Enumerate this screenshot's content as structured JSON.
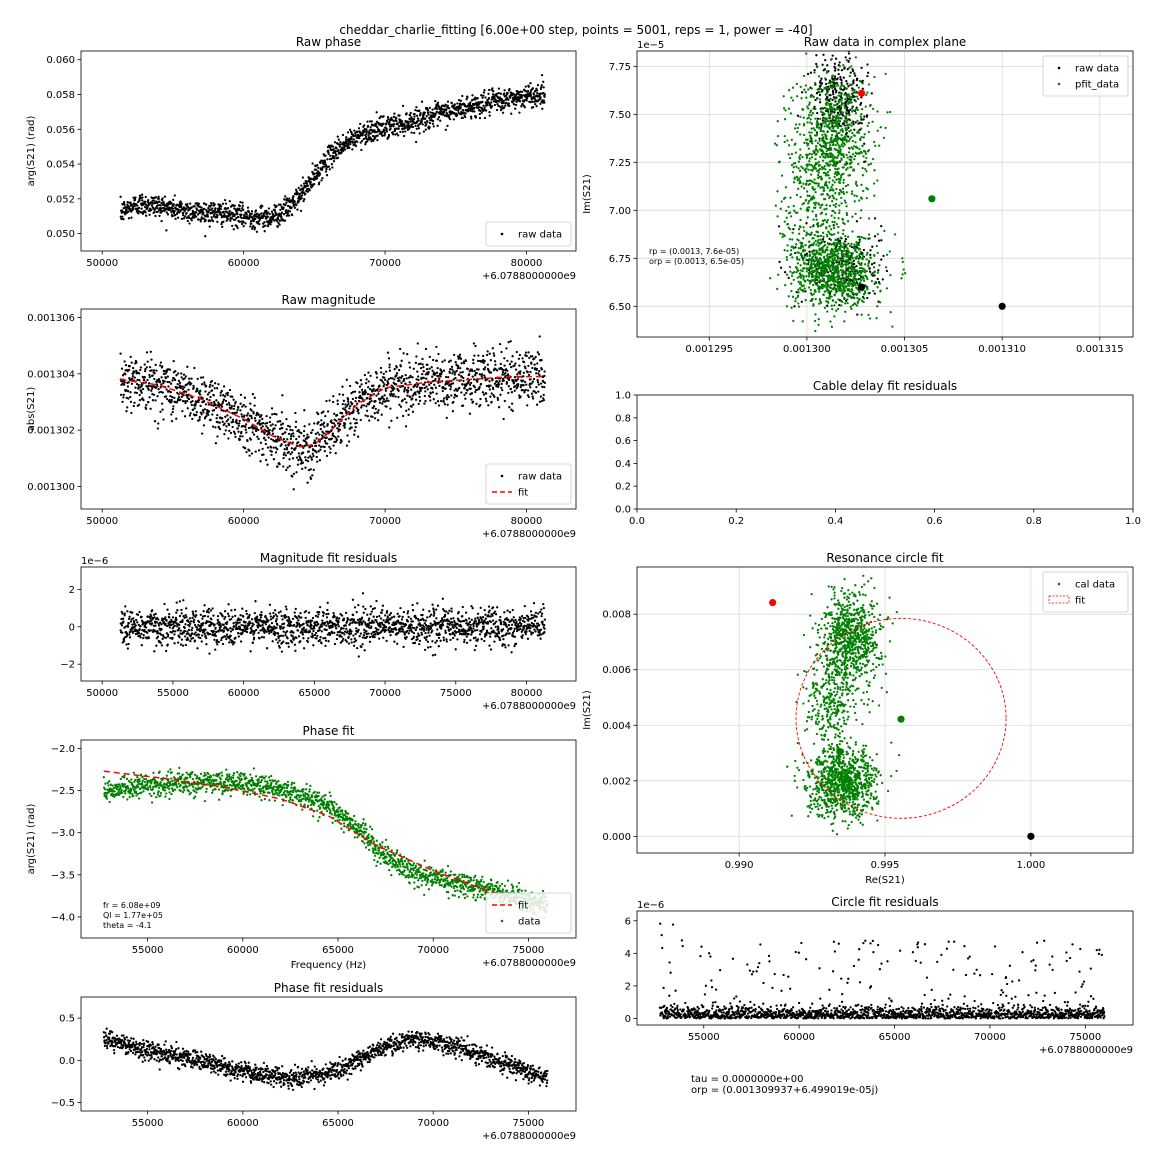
{
  "figure": {
    "suptitle": "cheddar_charlie_fitting [6.00e+00 step, points = 5001, reps = 1, power = -40]",
    "footer_lines": [
      "tau = 0.0000000e+00",
      "orp = (0.001309937+6.499019e-05j)"
    ]
  },
  "chart_data": [
    {
      "id": "raw_phase",
      "type": "scatter",
      "title": "Raw phase",
      "xlabel": "",
      "ylabel": "arg(S21) (rad)",
      "xlim": [
        48500,
        83500
      ],
      "ylim": [
        0.049,
        0.0605
      ],
      "xticks": [
        50000,
        60000,
        70000,
        80000
      ],
      "xtick_labels": [
        "50000",
        "60000",
        "70000",
        "80000"
      ],
      "yticks": [
        0.05,
        0.052,
        0.054,
        0.056,
        0.058,
        0.06
      ],
      "ytick_labels": [
        "0.050",
        "0.052",
        "0.054",
        "0.056",
        "0.058",
        "0.060"
      ],
      "x_offset_label": "+6.0788000000e9",
      "grid": false,
      "legend_loc": "lower-right",
      "series": [
        {
          "name": "raw data",
          "kind": "points",
          "color": "#000000",
          "x": [
            51300,
            52500,
            54000,
            56000,
            58000,
            60000,
            61500,
            62500,
            63500,
            64500,
            65500,
            66500,
            67500,
            68500,
            70000,
            72000,
            74000,
            76000,
            78000,
            80000,
            81300
          ],
          "y": [
            0.0512,
            0.0517,
            0.0516,
            0.0513,
            0.0512,
            0.051,
            0.0509,
            0.0511,
            0.0517,
            0.0527,
            0.0538,
            0.0548,
            0.0553,
            0.0558,
            0.0561,
            0.0565,
            0.0569,
            0.0573,
            0.0576,
            0.0579,
            0.058
          ],
          "spread": 0.0006,
          "density": 1800
        }
      ]
    },
    {
      "id": "raw_magnitude",
      "type": "scatter",
      "title": "Raw magnitude",
      "xlabel": "",
      "ylabel": "abs(S21)",
      "xlim": [
        48500,
        83500
      ],
      "ylim": [
        0.0012992,
        0.0013063
      ],
      "xticks": [
        50000,
        60000,
        70000,
        80000
      ],
      "xtick_labels": [
        "50000",
        "60000",
        "70000",
        "80000"
      ],
      "yticks": [
        0.0013,
        0.001302,
        0.001304,
        0.001306
      ],
      "ytick_labels": [
        "0.001300",
        "0.001302",
        "0.001304",
        "0.001306"
      ],
      "x_offset_label": "+6.0788000000e9",
      "grid": false,
      "legend_loc": "lower-right",
      "series": [
        {
          "name": "raw data",
          "kind": "points",
          "color": "#000000",
          "x": [
            51300,
            54000,
            57000,
            60000,
            62000,
            64000,
            65000,
            66000,
            68000,
            70000,
            73000,
            76000,
            79000,
            81300
          ],
          "y": [
            0.0013038,
            0.0013036,
            0.0013031,
            0.0013024,
            0.0013018,
            0.0013014,
            0.0013015,
            0.0013019,
            0.0013029,
            0.0013035,
            0.0013037,
            0.0013038,
            0.0013039,
            0.0013039
          ],
          "spread": 9e-07,
          "density": 1800
        },
        {
          "name": "fit",
          "kind": "line",
          "color": "#ff0000",
          "dash": "6,4",
          "x": [
            51300,
            54000,
            57000,
            60000,
            62000,
            64000,
            65000,
            66000,
            68000,
            70000,
            73000,
            76000,
            79000,
            81300
          ],
          "y": [
            0.0013038,
            0.0013036,
            0.0013031,
            0.0013024,
            0.0013018,
            0.0013014,
            0.0013015,
            0.0013019,
            0.0013029,
            0.0013035,
            0.0013037,
            0.0013038,
            0.0013039,
            0.0013039
          ]
        }
      ]
    },
    {
      "id": "mag_residuals",
      "type": "scatter",
      "title": "Magnitude fit residuals",
      "xlabel": "",
      "ylabel": "",
      "xlim": [
        48500,
        83500
      ],
      "ylim": [
        -2.9e-06,
        3.2e-06
      ],
      "xticks": [
        50000,
        55000,
        60000,
        65000,
        70000,
        75000,
        80000
      ],
      "xtick_labels": [
        "50000",
        "55000",
        "60000",
        "65000",
        "70000",
        "75000",
        "80000"
      ],
      "yticks": [
        -2e-06,
        0,
        2e-06
      ],
      "ytick_labels": [
        "−2",
        "0",
        "2"
      ],
      "y_scale_label": "1e−6",
      "x_offset_label": "+6.0788000000e9",
      "grid": false,
      "legend_loc": "",
      "series": [
        {
          "name": "",
          "kind": "points",
          "color": "#000000",
          "x": [
            51300,
            81300
          ],
          "y": [
            0,
            0
          ],
          "spread": 9e-07,
          "density": 1800
        }
      ]
    },
    {
      "id": "phase_fit",
      "type": "scatter",
      "title": "Phase fit",
      "xlabel": "Frequency (Hz)",
      "ylabel": "arg(S21) (rad)",
      "xlim": [
        51500,
        77500
      ],
      "ylim": [
        -4.25,
        -1.9
      ],
      "xticks": [
        55000,
        60000,
        65000,
        70000,
        75000
      ],
      "xtick_labels": [
        "55000",
        "60000",
        "65000",
        "70000",
        "75000"
      ],
      "yticks": [
        -4.0,
        -3.5,
        -3.0,
        -2.5,
        -2.0
      ],
      "ytick_labels": [
        "−4.0",
        "−3.5",
        "−3.0",
        "−2.5",
        "−2.0"
      ],
      "x_offset_label": "+6.0788000000e9",
      "grid": false,
      "legend_loc": "lower-right",
      "annotation": [
        "fr = 6.08e+09",
        "Ql = 1.77e+05",
        "theta = -4.1"
      ],
      "series": [
        {
          "name": "data",
          "kind": "points",
          "color": "#008000",
          "x": [
            52700,
            55000,
            58000,
            61000,
            63000,
            64500,
            66000,
            67500,
            69000,
            71000,
            73000,
            75000,
            76000
          ],
          "y": [
            -2.5,
            -2.44,
            -2.4,
            -2.44,
            -2.55,
            -2.68,
            -2.95,
            -3.28,
            -3.48,
            -3.58,
            -3.68,
            -3.8,
            -3.84
          ],
          "spread": 0.12,
          "density": 1700
        },
        {
          "name": "fit",
          "kind": "line",
          "color": "#ff0000",
          "dash": "6,4",
          "x": [
            52700,
            56000,
            59000,
            62000,
            64500,
            67000,
            70000,
            73000,
            76000
          ],
          "y": [
            -2.27,
            -2.36,
            -2.46,
            -2.6,
            -2.8,
            -3.15,
            -3.45,
            -3.7,
            -3.9
          ]
        }
      ]
    },
    {
      "id": "phase_residuals",
      "type": "scatter",
      "title": "Phase fit residuals",
      "xlabel": "",
      "ylabel": "",
      "xlim": [
        51500,
        77500
      ],
      "ylim": [
        -0.6,
        0.75
      ],
      "xticks": [
        55000,
        60000,
        65000,
        70000,
        75000
      ],
      "xtick_labels": [
        "55000",
        "60000",
        "65000",
        "70000",
        "75000"
      ],
      "yticks": [
        -0.5,
        0.0,
        0.5
      ],
      "ytick_labels": [
        "−0.5",
        "0.0",
        "0.5"
      ],
      "x_offset_label": "+6.0788000000e9",
      "grid": false,
      "legend_loc": "",
      "series": [
        {
          "name": "",
          "kind": "points",
          "color": "#000000",
          "x": [
            52700,
            55000,
            58000,
            61000,
            63000,
            65000,
            67000,
            69000,
            71000,
            73000,
            75000,
            76000
          ],
          "y": [
            0.25,
            0.12,
            -0.02,
            -0.18,
            -0.22,
            -0.12,
            0.12,
            0.26,
            0.18,
            0.02,
            -0.12,
            -0.2
          ],
          "spread": 0.1,
          "density": 1700
        }
      ]
    },
    {
      "id": "complex_plane",
      "type": "scatter",
      "title": "Raw data in complex plane",
      "xlabel": "",
      "ylabel": "Im(S21)",
      "xlim": [
        0.0012913,
        0.0013167
      ],
      "ylim": [
        6.34e-05,
        7.83e-05
      ],
      "xticks": [
        0.001295,
        0.0013,
        0.001305,
        0.00131,
        0.001315
      ],
      "xtick_labels": [
        "0.001295",
        "0.001300",
        "0.001305",
        "0.001310",
        "0.001315"
      ],
      "yticks": [
        6.5e-05,
        6.75e-05,
        7e-05,
        7.25e-05,
        7.5e-05,
        7.75e-05
      ],
      "ytick_labels": [
        "6.50",
        "6.75",
        "7.00",
        "7.25",
        "7.50",
        "7.75"
      ],
      "y_scale_label": "1e−5",
      "grid": true,
      "legend_loc": "upper-right",
      "annotation": [
        "rp = (0.0013, 7.6e-05)",
        "orp = (0.0013, 6.5e-05)"
      ],
      "series": [
        {
          "name": "raw data",
          "kind": "clusters",
          "color": "#000000",
          "clusters": [
            {
              "cx": 0.0013016,
              "cy": 7.58e-05,
              "sx": 7e-07,
              "sy": 1.2e-06,
              "n": 300
            },
            {
              "cx": 0.0013018,
              "cy": 6.7e-05,
              "sx": 1e-06,
              "sy": 1e-06,
              "n": 260
            }
          ]
        },
        {
          "name": "pfit_data",
          "kind": "clusters",
          "color": "#008000",
          "clusters": [
            {
              "cx": 0.0013013,
              "cy": 7.38e-05,
              "sx": 1e-06,
              "sy": 1.8e-06,
              "n": 750
            },
            {
              "cx": 0.0013004,
              "cy": 7.02e-05,
              "sx": 9e-07,
              "sy": 2e-06,
              "n": 260
            },
            {
              "cx": 0.0013014,
              "cy": 6.68e-05,
              "sx": 1.1e-06,
              "sy": 1e-06,
              "n": 900
            }
          ]
        }
      ],
      "markers": [
        {
          "x": 0.0013028,
          "y": 7.61e-05,
          "color": "#ff0000"
        },
        {
          "x": 0.0013064,
          "y": 7.06e-05,
          "color": "#008000"
        },
        {
          "x": 0.0013028,
          "y": 6.6e-05,
          "color": "#000000"
        },
        {
          "x": 0.00131,
          "y": 6.5e-05,
          "color": "#000000"
        }
      ]
    },
    {
      "id": "cable_delay",
      "type": "scatter",
      "title": "Cable delay fit residuals",
      "xlabel": "",
      "ylabel": "",
      "xlim": [
        0,
        1
      ],
      "ylim": [
        0,
        1
      ],
      "xticks": [
        0,
        0.2,
        0.4,
        0.6,
        0.8,
        1.0
      ],
      "xtick_labels": [
        "0.0",
        "0.2",
        "0.4",
        "0.6",
        "0.8",
        "1.0"
      ],
      "yticks": [
        0,
        0.2,
        0.4,
        0.6,
        0.8,
        1.0
      ],
      "ytick_labels": [
        "0.0",
        "0.2",
        "0.4",
        "0.6",
        "0.8",
        "1.0"
      ],
      "grid": false,
      "legend_loc": "",
      "series": []
    },
    {
      "id": "circle_fit",
      "type": "scatter",
      "title": "Resonance circle fit",
      "xlabel": "Re(S21)",
      "ylabel": "Im(S21)",
      "xlim": [
        0.9865,
        1.0035
      ],
      "ylim": [
        -0.0006,
        0.0097
      ],
      "xticks": [
        0.99,
        0.995,
        1.0
      ],
      "xtick_labels": [
        "0.990",
        "0.995",
        "1.000"
      ],
      "yticks": [
        0,
        0.002,
        0.004,
        0.006,
        0.008
      ],
      "ytick_labels": [
        "0.000",
        "0.002",
        "0.004",
        "0.006",
        "0.008"
      ],
      "grid": true,
      "legend_loc": "upper-right",
      "series": [
        {
          "name": "cal data",
          "kind": "clusters",
          "color": "#008000",
          "clusters": [
            {
              "cx": 0.99385,
              "cy": 0.0072,
              "sx": 0.0005,
              "sy": 0.0008,
              "n": 750
            },
            {
              "cx": 0.9932,
              "cy": 0.0048,
              "sx": 0.00045,
              "sy": 0.0009,
              "n": 300
            },
            {
              "cx": 0.99355,
              "cy": 0.0019,
              "sx": 0.0006,
              "sy": 0.0006,
              "n": 900
            }
          ]
        },
        {
          "name": "fit",
          "kind": "circle",
          "color": "#ff0000",
          "center": [
            0.99555,
            0.00425
          ],
          "radius": 0.0036
        }
      ],
      "markers": [
        {
          "x": 0.99115,
          "y": 0.00842,
          "color": "#ff0000"
        },
        {
          "x": 0.99555,
          "y": 0.00422,
          "color": "#008000"
        },
        {
          "x": 0.99345,
          "y": 0.00305,
          "color": "#008000"
        },
        {
          "x": 1.0,
          "y": 0.0,
          "color": "#000000"
        }
      ]
    },
    {
      "id": "circle_residuals",
      "type": "scatter",
      "title": "Circle fit residuals",
      "xlabel": "",
      "ylabel": "",
      "xlim": [
        51500,
        77500
      ],
      "ylim": [
        -4e-07,
        6.6e-06
      ],
      "xticks": [
        55000,
        60000,
        65000,
        70000,
        75000
      ],
      "xtick_labels": [
        "55000",
        "60000",
        "65000",
        "70000",
        "75000"
      ],
      "yticks": [
        0,
        2e-06,
        4e-06,
        6e-06
      ],
      "ytick_labels": [
        "0",
        "2",
        "4",
        "6"
      ],
      "y_scale_label": "1e−6",
      "x_offset_label": "+6.0788000000e9",
      "grid": false,
      "legend_loc": "",
      "series": [
        {
          "name": "",
          "kind": "residuals",
          "color": "#000000",
          "x": [
            52700,
            76000
          ],
          "y": [
            0,
            0
          ],
          "scale": 8e-07,
          "density": 1700
        }
      ]
    }
  ]
}
